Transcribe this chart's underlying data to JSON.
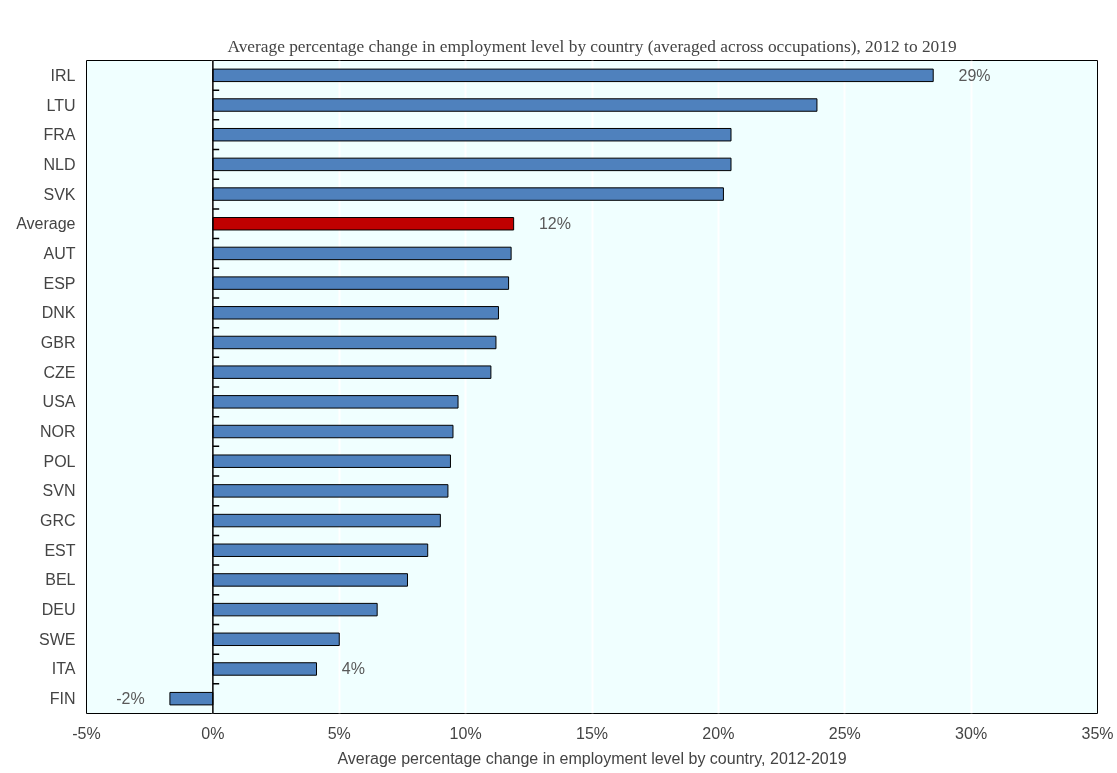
{
  "chart_data": {
    "type": "bar",
    "orientation": "horizontal",
    "title": "Average percentage change in employment level by country (averaged across occupations), 2012 to 2019",
    "xlabel": "Average percentage change in employment level by country, 2012-2019",
    "categories": [
      "IRL",
      "LTU",
      "FRA",
      "NLD",
      "SVK",
      "Average",
      "AUT",
      "ESP",
      "DNK",
      "GBR",
      "CZE",
      "USA",
      "NOR",
      "POL",
      "SVN",
      "GRC",
      "EST",
      "BEL",
      "DEU",
      "SWE",
      "ITA",
      "FIN"
    ],
    "values": [
      28.5,
      23.9,
      20.5,
      20.5,
      20.2,
      11.9,
      11.8,
      11.7,
      11.3,
      11.2,
      11.0,
      9.7,
      9.5,
      9.4,
      9.3,
      9.0,
      8.5,
      7.7,
      6.5,
      5.0,
      4.1,
      -1.7
    ],
    "colors": [
      "#4f81bd",
      "#4f81bd",
      "#4f81bd",
      "#4f81bd",
      "#4f81bd",
      "#c00000",
      "#4f81bd",
      "#4f81bd",
      "#4f81bd",
      "#4f81bd",
      "#4f81bd",
      "#4f81bd",
      "#4f81bd",
      "#4f81bd",
      "#4f81bd",
      "#4f81bd",
      "#4f81bd",
      "#4f81bd",
      "#4f81bd",
      "#4f81bd",
      "#4f81bd",
      "#4f81bd"
    ],
    "value_labels": [
      "29%",
      null,
      null,
      null,
      null,
      "12%",
      null,
      null,
      null,
      null,
      null,
      null,
      null,
      null,
      null,
      null,
      null,
      null,
      null,
      null,
      "4%",
      "-2%"
    ],
    "xlim": [
      -5,
      35
    ],
    "xticks": [
      {
        "value": -5,
        "label": "-5%"
      },
      {
        "value": 0,
        "label": "0%"
      },
      {
        "value": 5,
        "label": "5%"
      },
      {
        "value": 10,
        "label": "10%"
      },
      {
        "value": 15,
        "label": "15%"
      },
      {
        "value": 20,
        "label": "20%"
      },
      {
        "value": 25,
        "label": "25%"
      },
      {
        "value": 30,
        "label": "30%"
      },
      {
        "value": 35,
        "label": "35%"
      }
    ],
    "grid": "x"
  }
}
